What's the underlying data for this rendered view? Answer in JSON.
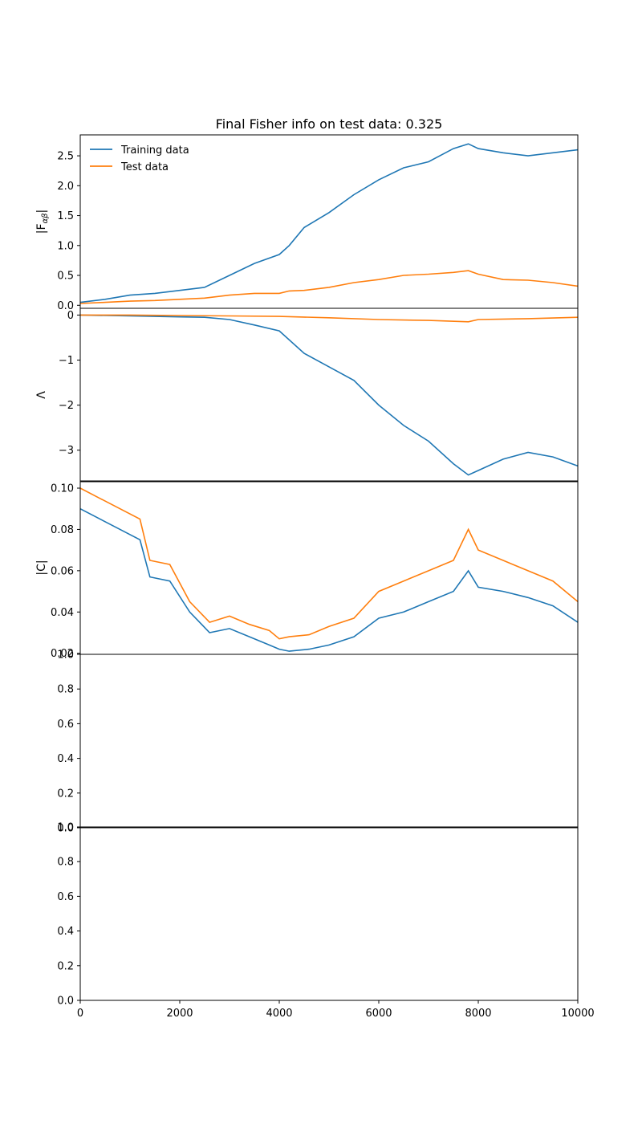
{
  "title": "Final Fisher info on test data: 0.325",
  "colors": {
    "training": "#1f77b4",
    "test": "#ff7f0e"
  },
  "chart_data": {
    "type": "line",
    "title": "Final Fisher info on test data: 0.325",
    "shared_x": {
      "range": [
        0,
        10000
      ],
      "ticks": [
        "0",
        "2000",
        "4000",
        "6000",
        "8000",
        "10000"
      ]
    },
    "legend": {
      "placement": "top-left",
      "entries": [
        "Training data",
        "Test data"
      ],
      "frameless": true
    },
    "panels": [
      {
        "ylabel": "|F",
        "ylabel_sub": "αβ",
        "ylabel_end": "|",
        "ylim": [
          -0.05,
          2.85
        ],
        "yticks": [
          "0.0",
          "0.5",
          "1.0",
          "1.5",
          "2.0",
          "2.5"
        ],
        "ytick_values": [
          0,
          0.5,
          1.0,
          1.5,
          2.0,
          2.5
        ],
        "series": [
          {
            "name": "Training data",
            "x": [
              0,
              500,
              1000,
              1500,
              2000,
              2500,
              3000,
              3500,
              4000,
              4200,
              4500,
              5000,
              5500,
              6000,
              6500,
              7000,
              7500,
              7800,
              8000,
              8500,
              9000,
              9500,
              10000
            ],
            "y": [
              0.05,
              0.1,
              0.17,
              0.2,
              0.25,
              0.3,
              0.5,
              0.7,
              0.85,
              1.0,
              1.3,
              1.55,
              1.85,
              2.1,
              2.3,
              2.4,
              2.62,
              2.7,
              2.62,
              2.55,
              2.5,
              2.55,
              2.6
            ]
          },
          {
            "name": "Test data",
            "x": [
              0,
              500,
              1000,
              1500,
              2000,
              2500,
              3000,
              3500,
              4000,
              4200,
              4500,
              5000,
              5500,
              6000,
              6500,
              7000,
              7500,
              7800,
              8000,
              8500,
              9000,
              9500,
              10000
            ],
            "y": [
              0.03,
              0.05,
              0.07,
              0.08,
              0.1,
              0.12,
              0.17,
              0.2,
              0.2,
              0.24,
              0.25,
              0.3,
              0.38,
              0.43,
              0.5,
              0.52,
              0.55,
              0.58,
              0.52,
              0.43,
              0.42,
              0.38,
              0.32
            ]
          }
        ]
      },
      {
        "ylabel": "Λ",
        "ylim": [
          -3.7,
          0.15
        ],
        "yticks": [
          "0",
          "−1",
          "−2",
          "−3"
        ],
        "ytick_values": [
          0,
          -1,
          -2,
          -3
        ],
        "series": [
          {
            "name": "Training data",
            "x": [
              0,
              1000,
              2000,
              2500,
              3000,
              3500,
              4000,
              4500,
              5000,
              5500,
              6000,
              6500,
              7000,
              7500,
              7800,
              8000,
              8500,
              9000,
              9500,
              10000
            ],
            "y": [
              0.0,
              -0.02,
              -0.04,
              -0.05,
              -0.1,
              -0.22,
              -0.35,
              -0.85,
              -1.15,
              -1.45,
              -2.0,
              -2.45,
              -2.8,
              -3.3,
              -3.55,
              -3.45,
              -3.2,
              -3.05,
              -3.15,
              -3.35
            ]
          },
          {
            "name": "Test data",
            "x": [
              0,
              1000,
              2000,
              3000,
              4000,
              5000,
              6000,
              7000,
              7800,
              8000,
              9000,
              10000
            ],
            "y": [
              0.0,
              0.0,
              -0.01,
              -0.02,
              -0.03,
              -0.06,
              -0.1,
              -0.12,
              -0.15,
              -0.1,
              -0.08,
              -0.05
            ]
          }
        ]
      },
      {
        "ylabel": "|C|",
        "ylim": [
          0.0195,
          0.1035
        ],
        "yticks": [
          "0.02",
          "0.04",
          "0.06",
          "0.08",
          "0.10"
        ],
        "ytick_values": [
          0.02,
          0.04,
          0.06,
          0.08,
          0.1
        ],
        "series": [
          {
            "name": "Training data",
            "x": [
              0,
              400,
              800,
              1200,
              1400,
              1800,
              2200,
              2600,
              3000,
              3400,
              3800,
              4000,
              4200,
              4600,
              5000,
              5500,
              6000,
              6500,
              7000,
              7500,
              7800,
              8000,
              8500,
              9000,
              9500,
              10000
            ],
            "y": [
              0.09,
              0.085,
              0.08,
              0.075,
              0.057,
              0.055,
              0.04,
              0.03,
              0.032,
              0.028,
              0.024,
              0.022,
              0.021,
              0.022,
              0.024,
              0.028,
              0.037,
              0.04,
              0.045,
              0.05,
              0.06,
              0.052,
              0.05,
              0.047,
              0.043,
              0.035
            ]
          },
          {
            "name": "Test data",
            "x": [
              0,
              400,
              800,
              1200,
              1400,
              1800,
              2200,
              2600,
              3000,
              3400,
              3800,
              4000,
              4200,
              4600,
              5000,
              5500,
              6000,
              6500,
              7000,
              7500,
              7800,
              8000,
              8500,
              9000,
              9500,
              10000
            ],
            "y": [
              0.1,
              0.095,
              0.09,
              0.085,
              0.065,
              0.063,
              0.045,
              0.035,
              0.038,
              0.034,
              0.031,
              0.027,
              0.028,
              0.029,
              0.033,
              0.037,
              0.05,
              0.055,
              0.06,
              0.065,
              0.08,
              0.07,
              0.065,
              0.06,
              0.055,
              0.045
            ]
          }
        ]
      },
      {
        "ylabel": "",
        "ylim": [
          0,
          1
        ],
        "yticks": [
          "0.0",
          "0.2",
          "0.4",
          "0.6",
          "0.8",
          "1.0"
        ],
        "ytick_values": [
          0,
          0.2,
          0.4,
          0.6,
          0.8,
          1.0
        ],
        "series": []
      },
      {
        "ylabel": "",
        "ylim": [
          0,
          1
        ],
        "yticks": [
          "0.0",
          "0.2",
          "0.4",
          "0.6",
          "0.8",
          "1.0"
        ],
        "ytick_values": [
          0,
          0.2,
          0.4,
          0.6,
          0.8,
          1.0
        ],
        "series": []
      }
    ]
  }
}
